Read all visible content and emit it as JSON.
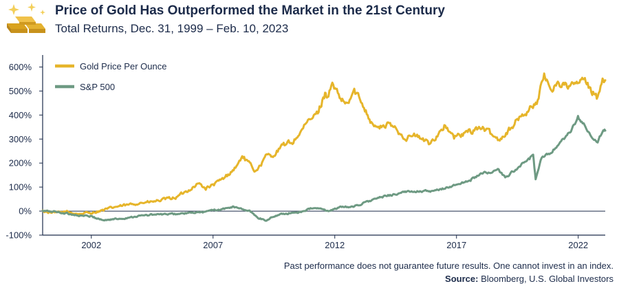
{
  "header": {
    "title": "Price of Gold Has Outperformed the Market in the 21st Century",
    "subtitle": "Total Returns, Dec. 31, 1999 – Feb. 10, 2023",
    "icon": "gold-bars-icon"
  },
  "footer": {
    "disclaimer": "Past performance does not guarantee future results. One cannot invest in an index.",
    "source_label": "Source:",
    "source_text": "Bloomberg, U.S. Global Investors"
  },
  "colors": {
    "gold": "#e6b52b",
    "sp500": "#6e9a83",
    "text": "#1c2b4a",
    "axis": "#1c2b4a",
    "zero_line": "#1c2b4a"
  },
  "chart_data": {
    "type": "line",
    "title": "Price of Gold Has Outperformed the Market in the 21st Century",
    "subtitle": "Total Returns, Dec. 31, 1999 – Feb. 10, 2023",
    "xlabel": "",
    "ylabel": "",
    "xlim": [
      2000.0,
      2023.11
    ],
    "ylim": [
      -100,
      650
    ],
    "y_ticks": [
      -100,
      0,
      100,
      200,
      300,
      400,
      500,
      600
    ],
    "y_tick_labels": [
      "-100%",
      "0%",
      "100%",
      "200%",
      "300%",
      "400%",
      "500%",
      "600%"
    ],
    "x_ticks": [
      2002,
      2007,
      2012,
      2017,
      2022
    ],
    "x_tick_labels": [
      "2002",
      "2007",
      "2012",
      "2017",
      "2022"
    ],
    "grid": false,
    "legend_position": "top-left",
    "series": [
      {
        "name": "Gold Price Per Ounce",
        "color": "#e6b52b",
        "x": [
          2000.0,
          2000.5,
          2001.0,
          2001.5,
          2002.0,
          2002.5,
          2003.0,
          2003.5,
          2004.0,
          2004.5,
          2005.0,
          2005.5,
          2006.0,
          2006.4,
          2006.7,
          2007.0,
          2007.5,
          2008.0,
          2008.2,
          2008.7,
          2008.9,
          2009.2,
          2009.5,
          2009.9,
          2010.3,
          2010.9,
          2011.3,
          2011.6,
          2011.7,
          2011.9,
          2012.2,
          2012.5,
          2012.8,
          2013.2,
          2013.5,
          2013.8,
          2014.2,
          2014.5,
          2014.9,
          2015.3,
          2015.9,
          2016.5,
          2016.9,
          2017.5,
          2018.0,
          2018.7,
          2019.0,
          2019.5,
          2019.9,
          2020.3,
          2020.6,
          2020.9,
          2021.2,
          2021.5,
          2021.9,
          2022.2,
          2022.5,
          2022.8,
          2023.0,
          2023.11
        ],
        "values": [
          0,
          -8,
          -3,
          -12,
          -6,
          4,
          18,
          25,
          35,
          38,
          48,
          58,
          88,
          115,
          95,
          108,
          140,
          190,
          230,
          170,
          185,
          230,
          235,
          275,
          290,
          370,
          410,
          490,
          480,
          525,
          470,
          440,
          500,
          440,
          370,
          345,
          360,
          345,
          305,
          315,
          280,
          355,
          305,
          330,
          350,
          300,
          320,
          380,
          415,
          455,
          560,
          510,
          535,
          520,
          525,
          550,
          505,
          470,
          560,
          545
        ]
      },
      {
        "name": "S&P 500",
        "color": "#6e9a83",
        "x": [
          2000.0,
          2000.5,
          2001.0,
          2001.5,
          2002.0,
          2002.5,
          2002.8,
          2003.3,
          2003.8,
          2004.5,
          2005.5,
          2006.5,
          2007.5,
          2007.8,
          2008.5,
          2008.9,
          2009.2,
          2009.5,
          2010.0,
          2010.5,
          2011.0,
          2011.3,
          2011.7,
          2012.2,
          2012.8,
          2013.5,
          2014.0,
          2014.5,
          2015.0,
          2015.5,
          2016.0,
          2016.5,
          2017.0,
          2017.5,
          2018.0,
          2018.7,
          2019.0,
          2019.5,
          2020.0,
          2020.15,
          2020.25,
          2020.5,
          2020.9,
          2021.3,
          2021.7,
          2021.99,
          2022.3,
          2022.5,
          2022.8,
          2023.0,
          2023.11
        ],
        "values": [
          0,
          -2,
          -10,
          -18,
          -22,
          -38,
          -35,
          -30,
          -22,
          -15,
          -12,
          -5,
          10,
          18,
          0,
          -30,
          -40,
          -20,
          -10,
          -5,
          10,
          12,
          0,
          15,
          20,
          45,
          60,
          72,
          80,
          85,
          80,
          95,
          110,
          125,
          155,
          170,
          140,
          180,
          215,
          240,
          130,
          220,
          245,
          285,
          330,
          390,
          355,
          310,
          290,
          330,
          335
        ]
      }
    ]
  }
}
